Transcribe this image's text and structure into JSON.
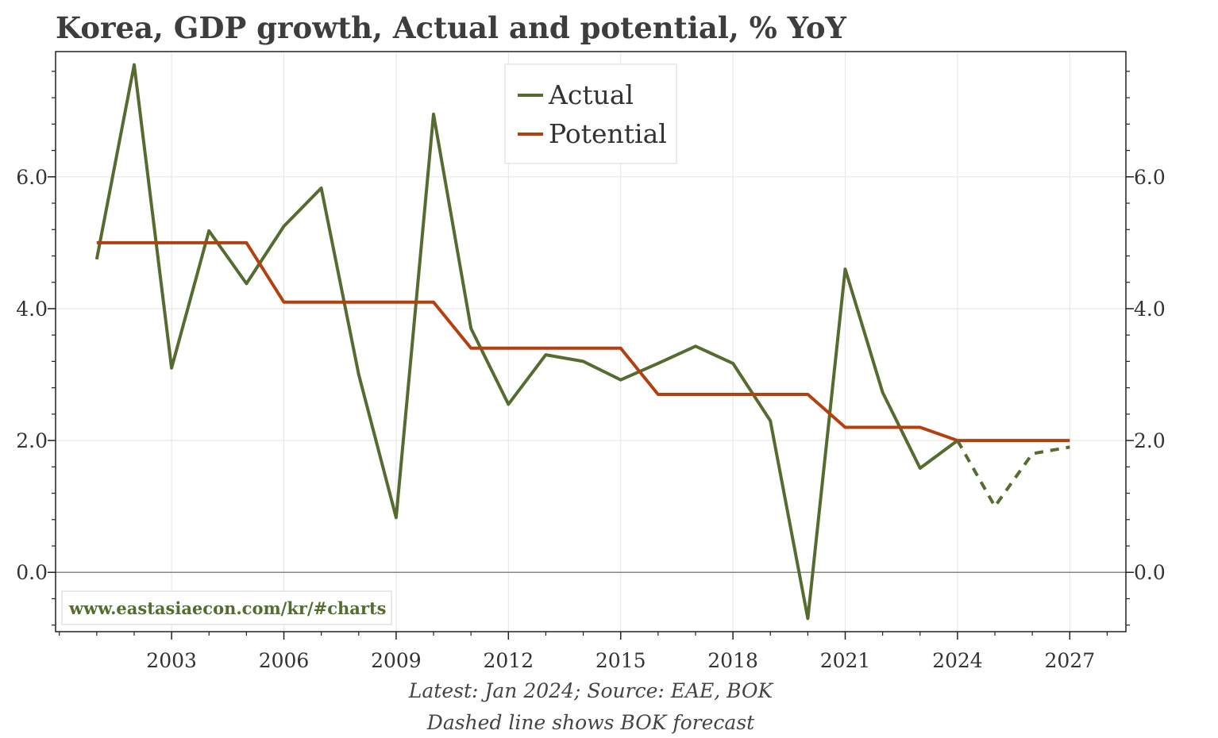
{
  "chart_data": {
    "type": "line",
    "title": "Korea, GDP growth, Actual and potential, % YoY",
    "xlabel": "",
    "ylabel": "",
    "xlim": [
      1999.9,
      2028.5
    ],
    "ylim": [
      -0.9,
      7.9
    ],
    "x_ticks": [
      2003,
      2006,
      2009,
      2012,
      2015,
      2018,
      2021,
      2024,
      2027
    ],
    "x_tick_labels": [
      "2003",
      "2006",
      "2009",
      "2012",
      "2015",
      "2018",
      "2021",
      "2024",
      "2027"
    ],
    "y_ticks": [
      0,
      2,
      4,
      6
    ],
    "y_tick_labels": [
      "0.0",
      "2.0",
      "4.0",
      "6.0"
    ],
    "grid": true,
    "legend_position": "top-center",
    "series": [
      {
        "name": "Actual",
        "color": "#556b2f",
        "x": [
          2001,
          2002,
          2003,
          2004,
          2005,
          2006,
          2007,
          2008,
          2009,
          2010,
          2011,
          2012,
          2013,
          2014,
          2015,
          2016,
          2017,
          2018,
          2019,
          2020,
          2021,
          2022,
          2023,
          2024
        ],
        "values": [
          4.75,
          7.7,
          3.1,
          5.18,
          4.38,
          5.25,
          5.83,
          3.0,
          0.83,
          6.95,
          3.7,
          2.55,
          3.3,
          3.2,
          2.92,
          3.17,
          3.43,
          3.17,
          2.3,
          -0.7,
          4.6,
          2.73,
          1.58,
          2.0
        ]
      },
      {
        "name": "Potential",
        "color": "#b5400f",
        "x": [
          2001,
          2005,
          2006,
          2010,
          2011,
          2015,
          2016,
          2020,
          2021,
          2023,
          2024,
          2027
        ],
        "values": [
          5.0,
          5.0,
          4.1,
          4.1,
          3.4,
          3.4,
          2.7,
          2.7,
          2.2,
          2.2,
          2.0,
          2.0
        ]
      },
      {
        "name": "",
        "style": "dashed",
        "color": "#556b2f",
        "x": [
          2024,
          2025,
          2026,
          2027
        ],
        "values": [
          2.0,
          1.0,
          1.8,
          1.9
        ]
      }
    ],
    "footnotes": [
      "Latest: Jan 2024; Source: EAE, BOK",
      "Dashed line shows BOK forecast"
    ],
    "watermark": "www.eastasiaecon.com/kr/#charts"
  }
}
